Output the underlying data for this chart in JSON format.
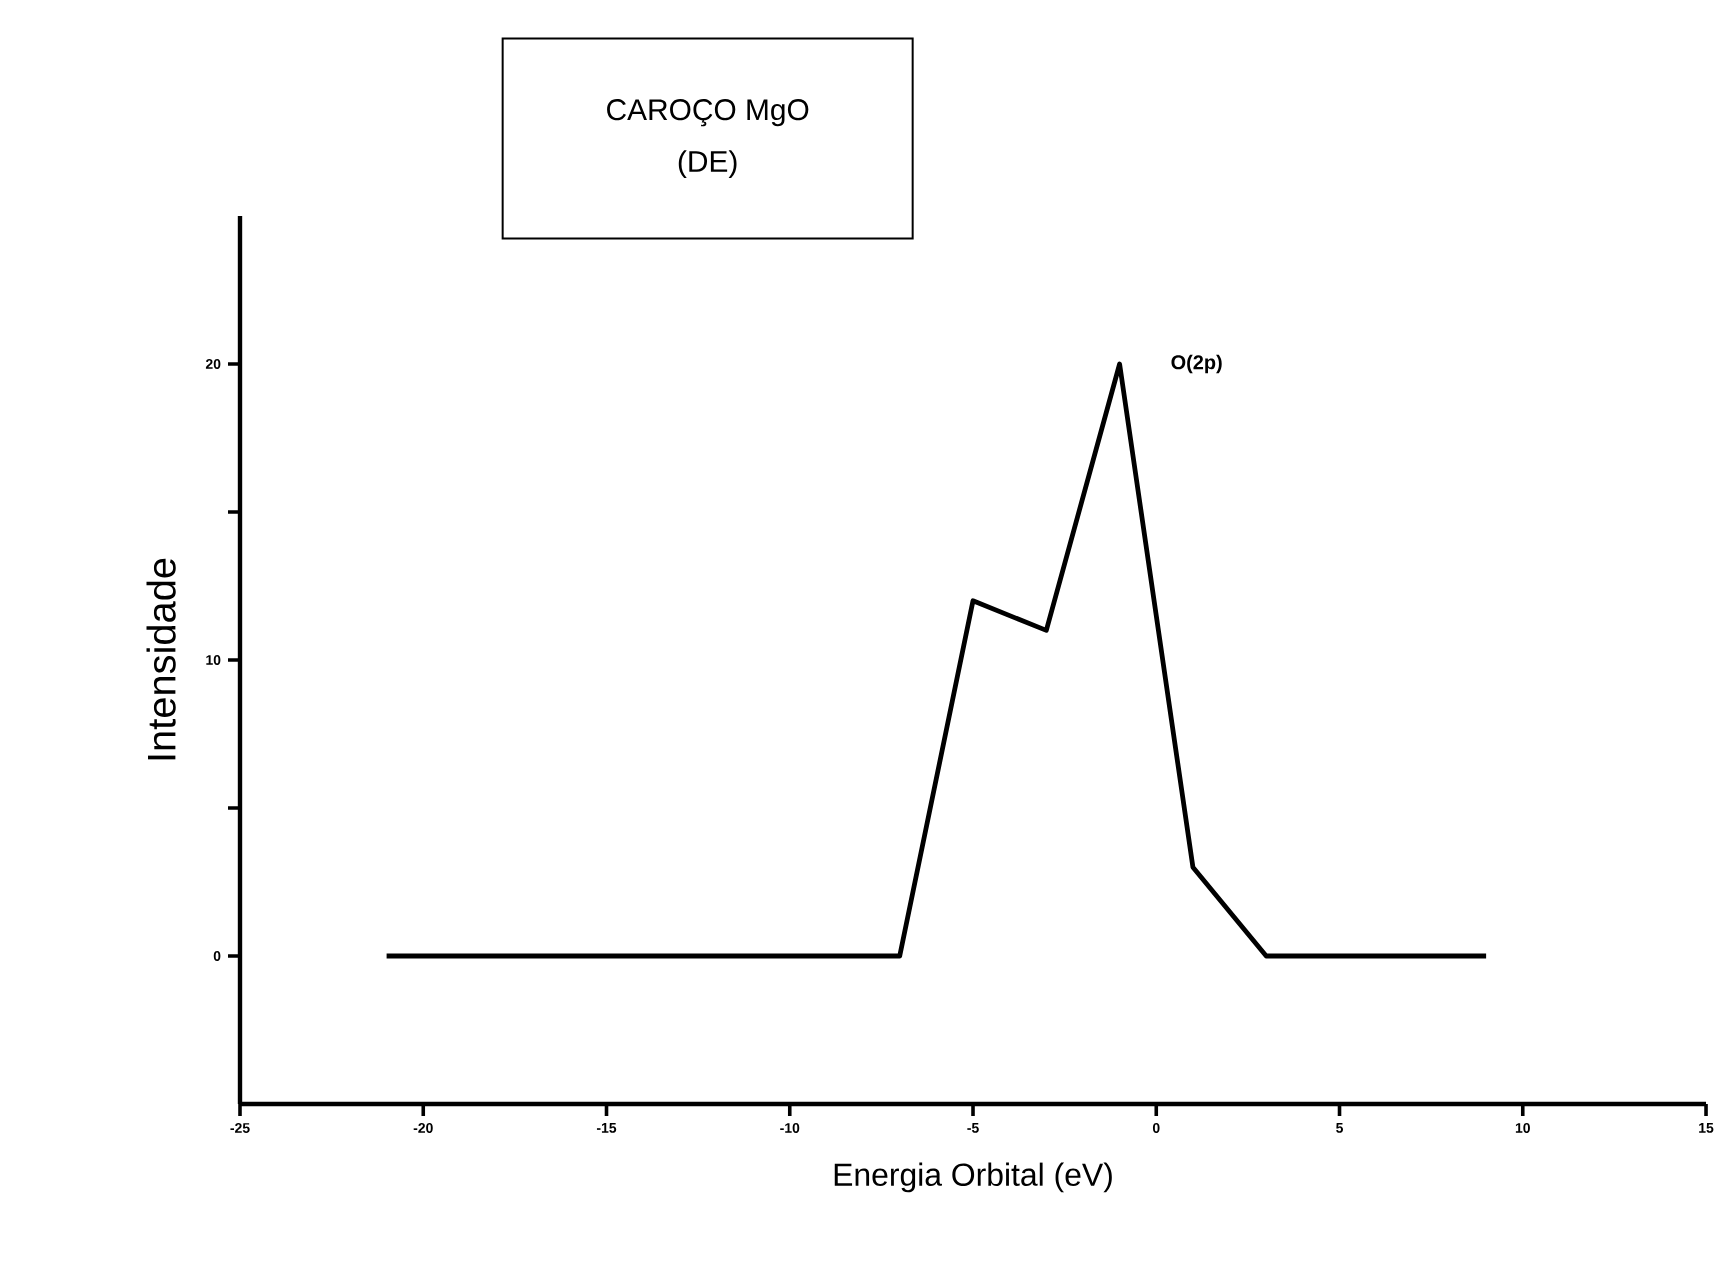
{
  "chart_data": {
    "type": "line",
    "title": "CAROÇO MgO",
    "subtitle": "(DE)",
    "xlabel": "Energia Orbital (eV)",
    "ylabel": "Intensidade",
    "x": [
      -21,
      -7,
      -5,
      -3,
      -1,
      1,
      3,
      9
    ],
    "series": [
      {
        "color": "#000000",
        "values": [
          0,
          0,
          12,
          11,
          20,
          3,
          0,
          0
        ]
      }
    ],
    "xlim": [
      -25,
      15
    ],
    "ylim": [
      -5,
      25
    ],
    "xticks": [
      -25,
      -20,
      -15,
      -10,
      -5,
      0,
      5,
      10,
      15
    ],
    "yticks": [
      0,
      {
        "value": 5,
        "label": null
      },
      10,
      {
        "value": 15,
        "label": null
      },
      20
    ],
    "annotations": [
      {
        "text": "O(2p)",
        "x": -1,
        "y": 20
      }
    ]
  }
}
